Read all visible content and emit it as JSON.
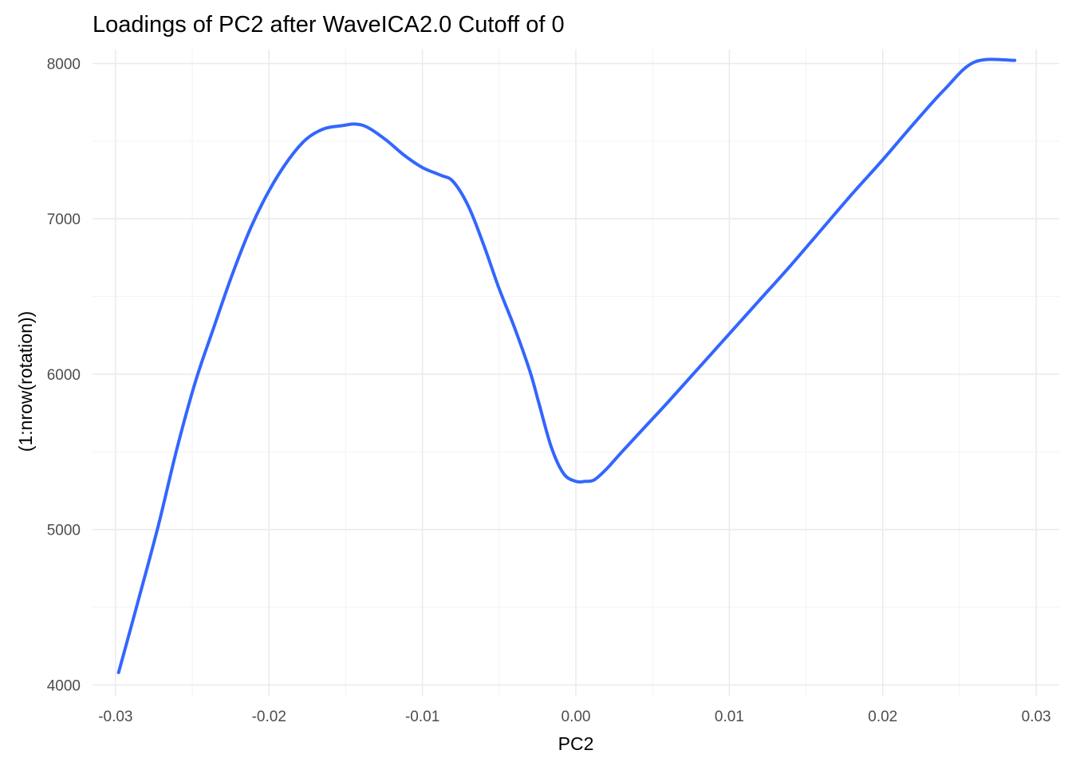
{
  "chart_data": {
    "type": "line",
    "title": "Loadings of PC2 after WaveICA2.0 Cutoff of 0",
    "xlabel": "PC2",
    "ylabel": "(1:nrow(rotation))",
    "xlim": [
      -0.0315,
      0.0315
    ],
    "ylim": [
      3930,
      8090
    ],
    "x_ticks": [
      -0.03,
      -0.02,
      -0.01,
      0.0,
      0.01,
      0.02,
      0.03
    ],
    "x_tick_labels": [
      "-0.03",
      "-0.02",
      "-0.01",
      "0.00",
      "0.01",
      "0.02",
      "0.03"
    ],
    "y_ticks": [
      4000,
      5000,
      6000,
      7000,
      8000
    ],
    "y_tick_labels": [
      "4000",
      "5000",
      "6000",
      "7000",
      "8000"
    ],
    "grid": true,
    "legend": "none",
    "color": "#3366ff",
    "series": [
      {
        "x": [
          -0.0298,
          -0.0285,
          -0.0272,
          -0.026,
          -0.0248,
          -0.0236,
          -0.0224,
          -0.0212,
          -0.02,
          -0.0188,
          -0.0176,
          -0.0164,
          -0.0152,
          -0.0144,
          -0.0136,
          -0.0124,
          -0.0112,
          -0.01,
          -0.0088,
          -0.008,
          -0.007,
          -0.006,
          -0.005,
          -0.004,
          -0.003,
          -0.0024,
          -0.0016,
          -0.0008,
          0.0,
          0.0006,
          0.0012,
          0.002,
          0.003,
          0.0045,
          0.006,
          0.008,
          0.01,
          0.012,
          0.014,
          0.016,
          0.018,
          0.02,
          0.022,
          0.024,
          0.026,
          0.0286
        ],
        "y": [
          4080,
          4550,
          5030,
          5520,
          5950,
          6300,
          6640,
          6940,
          7180,
          7370,
          7510,
          7580,
          7600,
          7610,
          7590,
          7510,
          7410,
          7330,
          7280,
          7240,
          7080,
          6830,
          6550,
          6300,
          6020,
          5810,
          5530,
          5360,
          5310,
          5310,
          5320,
          5390,
          5500,
          5660,
          5820,
          6040,
          6260,
          6480,
          6700,
          6930,
          7160,
          7380,
          7610,
          7830,
          8010,
          8020
        ]
      }
    ]
  }
}
